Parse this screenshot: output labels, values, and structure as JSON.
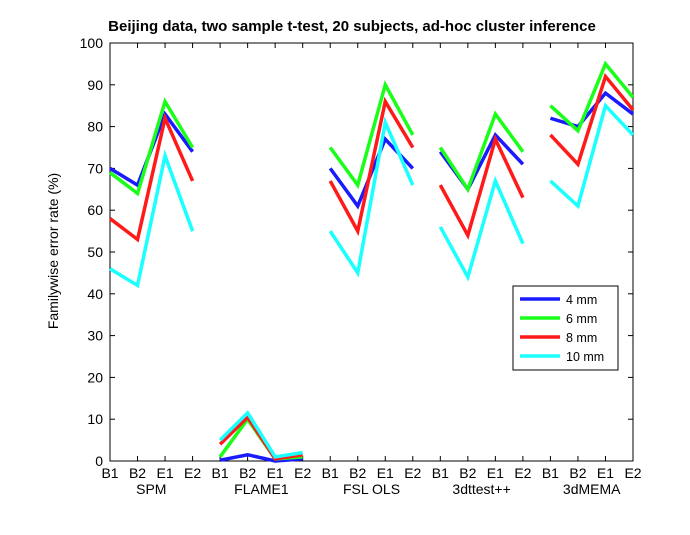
{
  "chart_data": {
    "type": "line",
    "title": "Beijing data, two sample t-test, 20 subjects, ad-hoc cluster inference",
    "xlabel": "",
    "ylabel": "Familywise error rate (%)",
    "ylim": [
      0,
      100
    ],
    "yticks": [
      0,
      10,
      20,
      30,
      40,
      50,
      60,
      70,
      80,
      90,
      100
    ],
    "grid": false,
    "legend_position": "right",
    "categories": [
      "B1",
      "B2",
      "E1",
      "E2",
      "B1",
      "B2",
      "E1",
      "E2",
      "B1",
      "B2",
      "E1",
      "E2",
      "B1",
      "B2",
      "E1",
      "E2",
      "B1",
      "B2",
      "E1",
      "E2"
    ],
    "groups": [
      "SPM",
      "FLAME1",
      "FSL OLS",
      "3dttest++",
      "3dMEMA"
    ],
    "series": [
      {
        "name": "4 mm",
        "color": "#1a1aff",
        "values": [
          70,
          66,
          83,
          74,
          0.2,
          1.5,
          0,
          0.5,
          70,
          61,
          77,
          70,
          74,
          65,
          78,
          71,
          82,
          80,
          88,
          83
        ]
      },
      {
        "name": "6 mm",
        "color": "#1aff1a",
        "values": [
          69,
          64,
          86,
          75,
          1.0,
          10,
          0.5,
          1.0,
          75,
          66,
          90,
          78,
          75,
          65,
          83,
          74,
          85,
          79,
          95,
          87
        ]
      },
      {
        "name": "8 mm",
        "color": "#ff1a1a",
        "values": [
          58,
          53,
          82,
          67,
          4,
          10.5,
          0.5,
          1.5,
          67,
          55,
          86,
          75,
          66,
          54,
          77,
          63,
          78,
          71,
          92,
          84
        ]
      },
      {
        "name": "10 mm",
        "color": "#1affff",
        "values": [
          46,
          42,
          73,
          55,
          5,
          11.5,
          1,
          2,
          55,
          45,
          81,
          66,
          56,
          44,
          67,
          52,
          67,
          61,
          85,
          78
        ]
      }
    ]
  }
}
